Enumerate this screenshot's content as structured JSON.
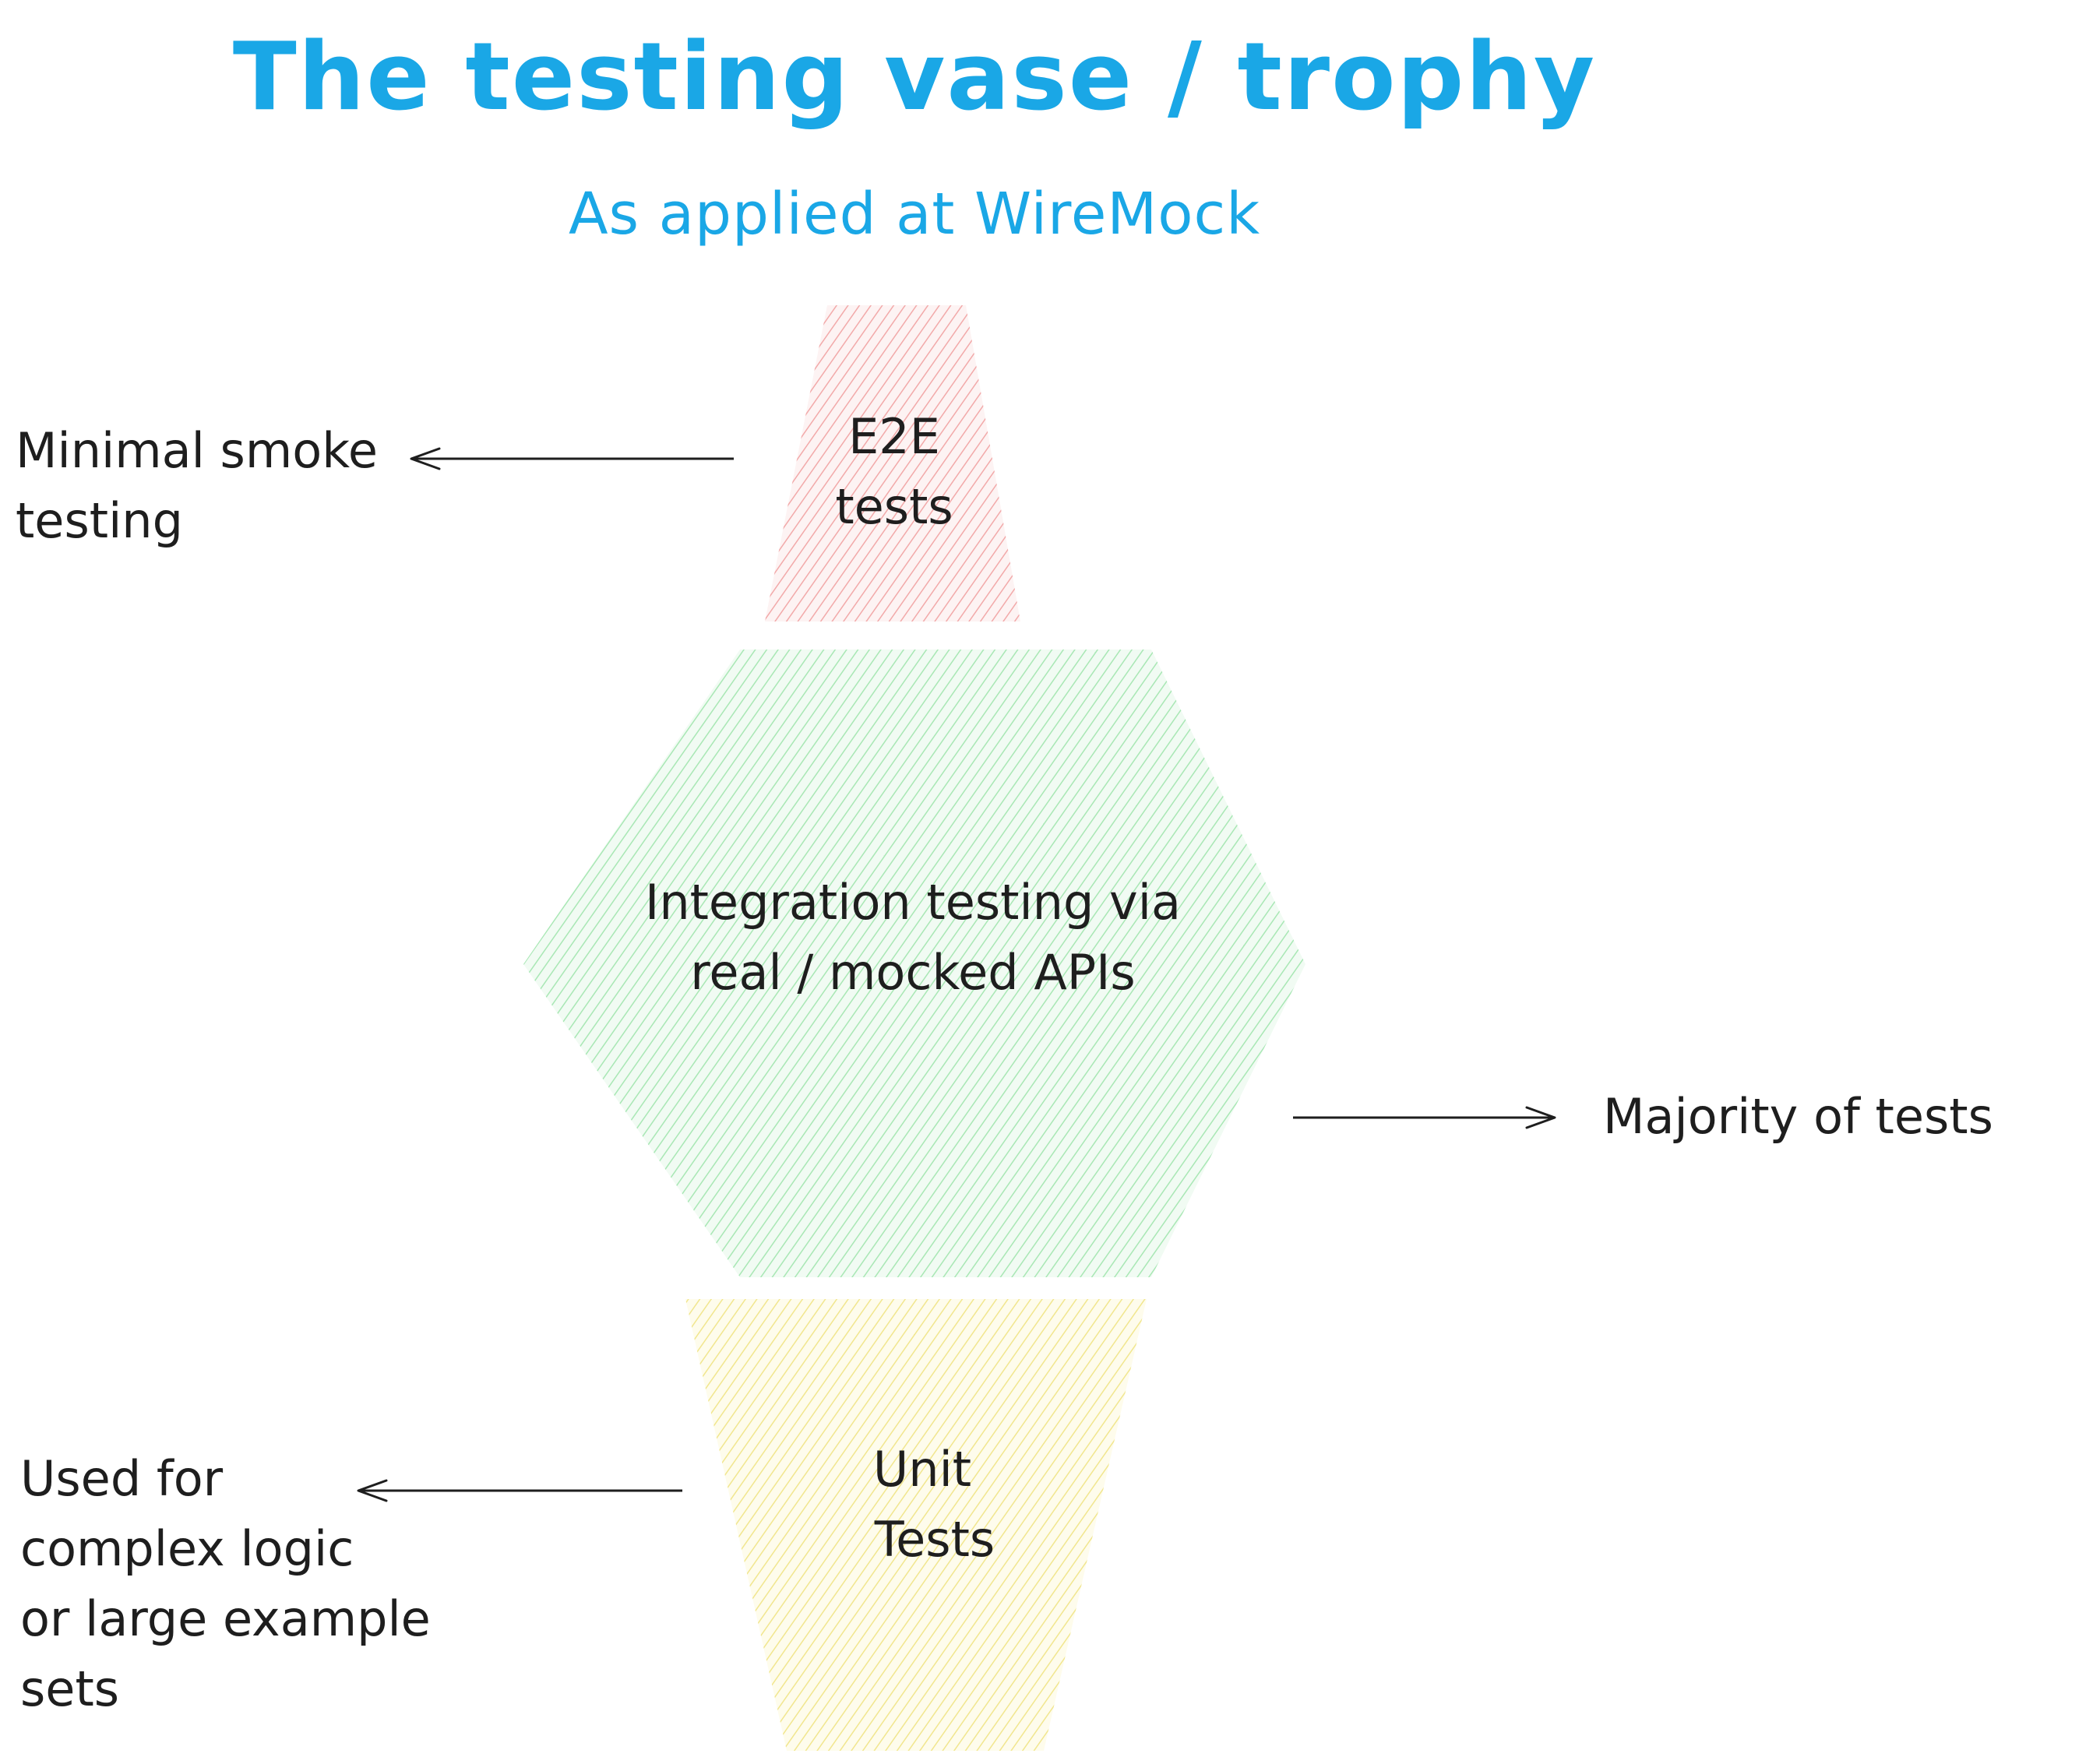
{
  "title": "The testing vase / trophy",
  "subtitle": "As applied at WireMock",
  "colors": {
    "title": "#1aa7e6",
    "ink": "#1e1e1e",
    "e2e_fill": "#f4b6b6",
    "integration_fill": "#b2efbe",
    "unit_fill": "#f7ef9c",
    "arrow": "#1e1e1e"
  },
  "layers": {
    "e2e": {
      "line1": "E2E",
      "line2": "tests"
    },
    "integration": {
      "line1": "Integration testing via",
      "line2": "real / mocked APIs"
    },
    "unit": {
      "line1": "Unit",
      "line2": "Tests"
    }
  },
  "notes": {
    "e2e": {
      "line1": "Minimal smoke",
      "line2": "testing"
    },
    "integration": {
      "line1": "Majority of tests"
    },
    "unit": {
      "line1": "Used for",
      "line2": "complex logic",
      "line3": "or large example",
      "line4": "sets"
    }
  }
}
